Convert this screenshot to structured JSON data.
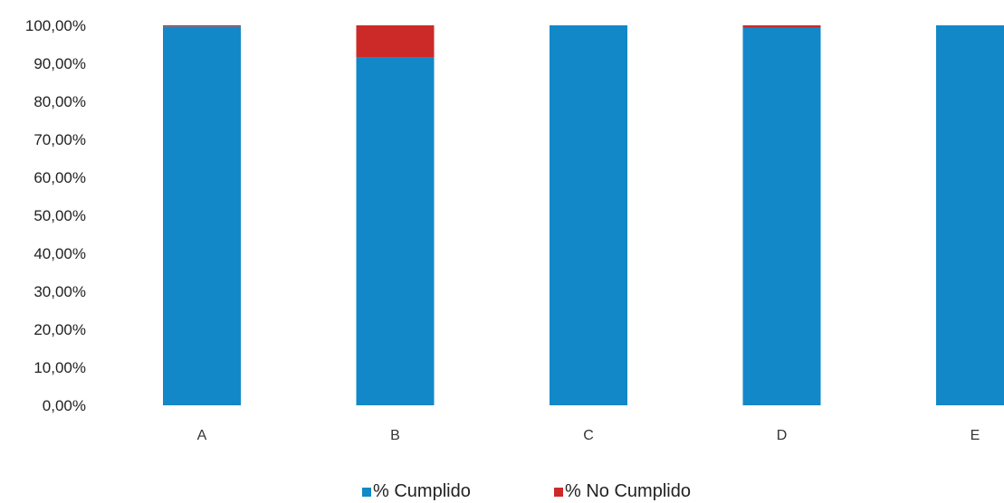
{
  "chart_data": {
    "type": "bar",
    "stacked": true,
    "categories": [
      "A",
      "B",
      "C",
      "D",
      "E"
    ],
    "series": [
      {
        "name": "% Cumplido",
        "values": [
          99.7,
          91.5,
          100,
          99.4,
          100
        ],
        "color": "#1288c8"
      },
      {
        "name": "% No Cumplido",
        "values": [
          0.3,
          8.5,
          0,
          0.6,
          0
        ],
        "color": "#cc2a28"
      }
    ],
    "yticks": [
      "0,00%",
      "10,00%",
      "20,00%",
      "30,00%",
      "40,00%",
      "50,00%",
      "60,00%",
      "70,00%",
      "80,00%",
      "90,00%",
      "100,00%"
    ],
    "ylim": [
      0,
      100
    ],
    "title": "",
    "xlabel": "",
    "ylabel": "",
    "grid": false,
    "legend_position": "bottom-center"
  }
}
